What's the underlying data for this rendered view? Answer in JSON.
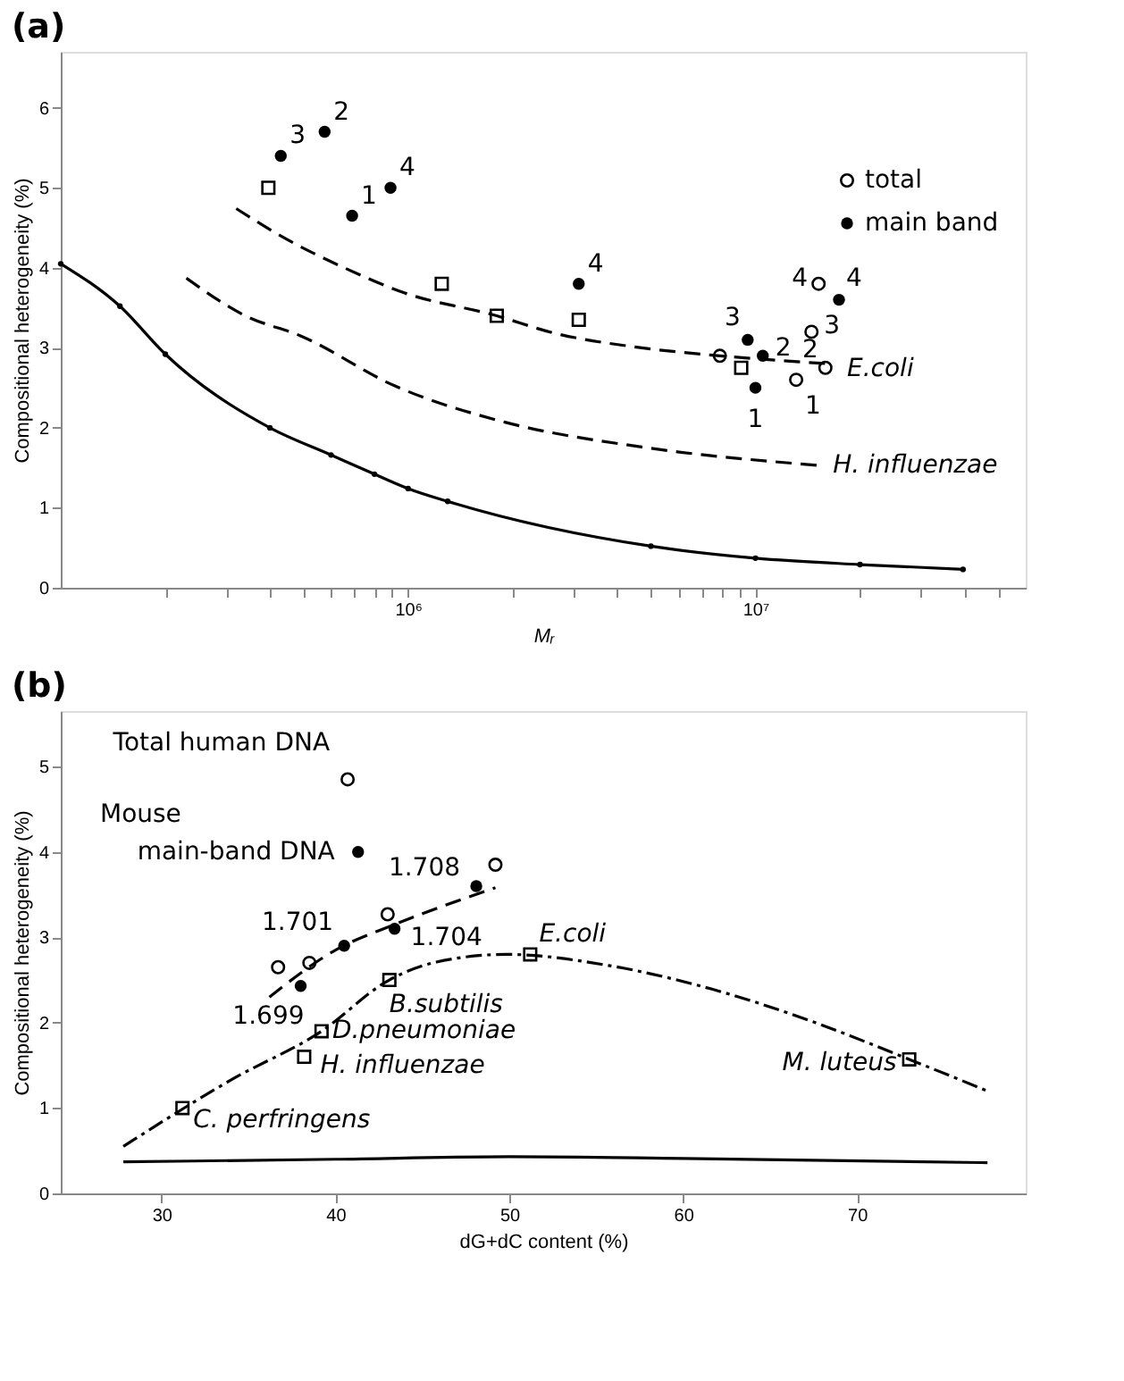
{
  "chart_data": [
    {
      "type": "scatter",
      "title": "(a)",
      "xlabel": "Mᵣ",
      "ylabel": "Compositional heterogeneity (%)",
      "log": "x",
      "legend": "top right",
      "grid": false,
      "xlim": [
        100000,
        60000000
      ],
      "ylim": [
        0,
        6.7
      ],
      "yticks": [
        0,
        1,
        2,
        3,
        4,
        5,
        6
      ],
      "xticks": [
        {
          "value": 200000,
          "label": null
        },
        {
          "value": 300000,
          "label": null
        },
        {
          "value": 400000,
          "label": null
        },
        {
          "value": 500000,
          "label": null
        },
        {
          "value": 600000,
          "label": null
        },
        {
          "value": 700000,
          "label": null
        },
        {
          "value": 800000,
          "label": null
        },
        {
          "value": 900000,
          "label": null
        },
        {
          "value": 1000000,
          "label": "10⁶"
        },
        {
          "value": 2000000,
          "label": null
        },
        {
          "value": 3000000,
          "label": null
        },
        {
          "value": 4000000,
          "label": null
        },
        {
          "value": 5000000,
          "label": null
        },
        {
          "value": 6000000,
          "label": null
        },
        {
          "value": 7000000,
          "label": null
        },
        {
          "value": 8000000,
          "label": null
        },
        {
          "value": 9000000,
          "label": null
        },
        {
          "value": 10000000,
          "label": "10⁷"
        },
        {
          "value": 20000000,
          "label": null
        },
        {
          "value": 30000000,
          "label": null
        },
        {
          "value": 40000000,
          "label": null
        },
        {
          "value": 50000000,
          "label": null
        }
      ],
      "series": [
        {
          "name": "total",
          "marker": "circle",
          "color": "#000000",
          "x": [
            7900000,
            14500000,
            15900000,
            13100000,
            15200000
          ],
          "values": [
            2.9,
            3.2,
            2.75,
            2.6,
            3.8
          ]
        },
        {
          "name": "main band",
          "marker": "circle",
          "color": "#000000",
          "x": [
            430000,
            575000,
            690000,
            890000,
            3100000,
            9500000,
            10500000,
            10000000,
            17400000
          ],
          "values": [
            5.4,
            5.7,
            4.65,
            5.0,
            3.8,
            3.1,
            2.9,
            2.5,
            3.6
          ]
        },
        {
          "marker": "square",
          "color": "#000000",
          "x": [
            396000,
            1250000,
            1800000,
            3100000,
            9100000
          ],
          "values": [
            5.0,
            3.8,
            3.4,
            3.35,
            2.75
          ]
        },
        {
          "type": "line",
          "line_style": "dashed",
          "color": "#000000",
          "x": [
            320000,
            450000,
            640000,
            970000,
            1800000,
            2600000,
            4700000,
            7900000,
            16300000
          ],
          "values": [
            4.74,
            4.35,
            4.02,
            3.69,
            3.4,
            3.19,
            3.0,
            2.9,
            2.8
          ]
        },
        {
          "type": "line",
          "line_style": "dashed",
          "color": "#000000",
          "x": [
            230000,
            340000,
            490000,
            920000,
            1900000,
            4700000,
            15200000
          ],
          "values": [
            3.87,
            3.4,
            3.15,
            2.52,
            2.07,
            1.76,
            1.53
          ]
        },
        {
          "type": "line",
          "line_style": "solid",
          "marker": "circle",
          "color": "#000000",
          "x": [
            100000,
            148000,
            200000,
            400000,
            600000,
            800000,
            1000000,
            1300000,
            5000000,
            10000000,
            20000000,
            39600000
          ],
          "values": [
            4.05,
            3.52,
            2.92,
            2.0,
            1.66,
            1.42,
            1.24,
            1.08,
            0.52,
            0.37,
            0.29,
            0.23
          ]
        }
      ],
      "annotations": [
        {
          "text": "3",
          "x": 430000,
          "y": 5.4
        },
        {
          "text": "2",
          "x": 575000,
          "y": 5.7
        },
        {
          "text": "1",
          "x": 690000,
          "y": 4.65
        },
        {
          "text": "4",
          "x": 890000,
          "y": 5.0
        },
        {
          "text": "4",
          "x": 3100000,
          "y": 3.8
        },
        {
          "text": "3",
          "x": 9500000,
          "y": 3.1
        },
        {
          "text": "2",
          "x": 10500000,
          "y": 2.9
        },
        {
          "text": "1",
          "x": 10000000,
          "y": 2.5
        },
        {
          "text": "4",
          "x": 17400000,
          "y": 3.6
        },
        {
          "text": "3",
          "x": 14500000,
          "y": 3.2
        },
        {
          "text": "2",
          "x": 15900000,
          "y": 2.75
        },
        {
          "text": "1",
          "x": 13100000,
          "y": 2.6
        },
        {
          "text": "4",
          "x": 15200000,
          "y": 3.8
        },
        {
          "text": "E.coli",
          "x": 16300000,
          "y": 2.8
        },
        {
          "text": "H. influenzae",
          "x": 15200000,
          "y": 1.53
        }
      ]
    },
    {
      "type": "scatter",
      "title": "(b)",
      "xlabel": "dG+dC content (%)",
      "ylabel": "Compositional heterogeneity (%)",
      "grid": false,
      "xlim": [
        24.2,
        79.7
      ],
      "ylim": [
        0,
        5.65
      ],
      "xticks": [
        30,
        40,
        50,
        60,
        70
      ],
      "yticks": [
        0,
        1,
        2,
        3,
        4,
        5
      ],
      "series": [
        {
          "marker": "circle",
          "color": "#000000",
          "x": [
            40.7,
            49.2,
            43.0,
            36.7,
            38.5
          ],
          "values": [
            4.85,
            3.85,
            3.27,
            2.65,
            2.7
          ]
        },
        {
          "marker": "circle",
          "color": "#000000",
          "x": [
            41.3,
            48.1,
            43.4,
            40.5,
            38.0
          ],
          "values": [
            4.0,
            3.6,
            3.1,
            2.9,
            2.43
          ]
        },
        {
          "marker": "square",
          "color": "#000000",
          "x": [
            31.2,
            38.2,
            39.2,
            43.1,
            51.2,
            73.0
          ],
          "values": [
            1.0,
            1.6,
            1.9,
            2.5,
            2.8,
            1.57
          ]
        },
        {
          "type": "line",
          "line_style": "dashed",
          "color": "#000000",
          "x": [
            36.2,
            40.0,
            43.4,
            49.2
          ],
          "values": [
            2.3,
            2.85,
            3.15,
            3.58
          ]
        },
        {
          "type": "line",
          "line_style": "dashdot",
          "color": "#000000",
          "x": [
            27.8,
            34.0,
            39.2,
            43.1,
            45.8,
            49.8,
            55.7,
            61.7,
            67.6,
            73.0,
            77.5
          ],
          "values": [
            0.55,
            1.33,
            1.9,
            2.5,
            2.71,
            2.8,
            2.67,
            2.39,
            2.0,
            1.57,
            1.2
          ]
        },
        {
          "type": "line",
          "line_style": "solid",
          "color": "#000000",
          "x": [
            27.8,
            40.0,
            50.0,
            60.0,
            77.5
          ],
          "values": [
            0.37,
            0.4,
            0.43,
            0.41,
            0.36
          ]
        }
      ],
      "annotations": [
        {
          "text": "Total human DNA",
          "x": 40.7,
          "y": 4.85
        },
        "Mouse",
        {
          "text": "main-band DNA",
          "x": 41.3,
          "y": 4.0
        },
        {
          "text": "1.708",
          "x": 48.1,
          "y": 3.6
        },
        {
          "text": "1.701",
          "x": 40.5,
          "y": 2.9
        },
        {
          "text": "1.704",
          "x": 43.4,
          "y": 3.1
        },
        {
          "text": "E.coli",
          "x": 51.2,
          "y": 2.8
        },
        {
          "text": "1.699",
          "x": 38.0,
          "y": 2.43
        },
        {
          "text": "B.subtilis",
          "x": 43.1,
          "y": 2.5
        },
        {
          "text": "D.pneumoniae",
          "x": 39.2,
          "y": 1.9
        },
        {
          "text": "H. influenzae",
          "x": 38.2,
          "y": 1.6
        },
        {
          "text": "C. perfringens",
          "x": 31.2,
          "y": 1.0
        },
        {
          "text": "M. luteus",
          "x": 73.0,
          "y": 1.57
        }
      ]
    }
  ]
}
